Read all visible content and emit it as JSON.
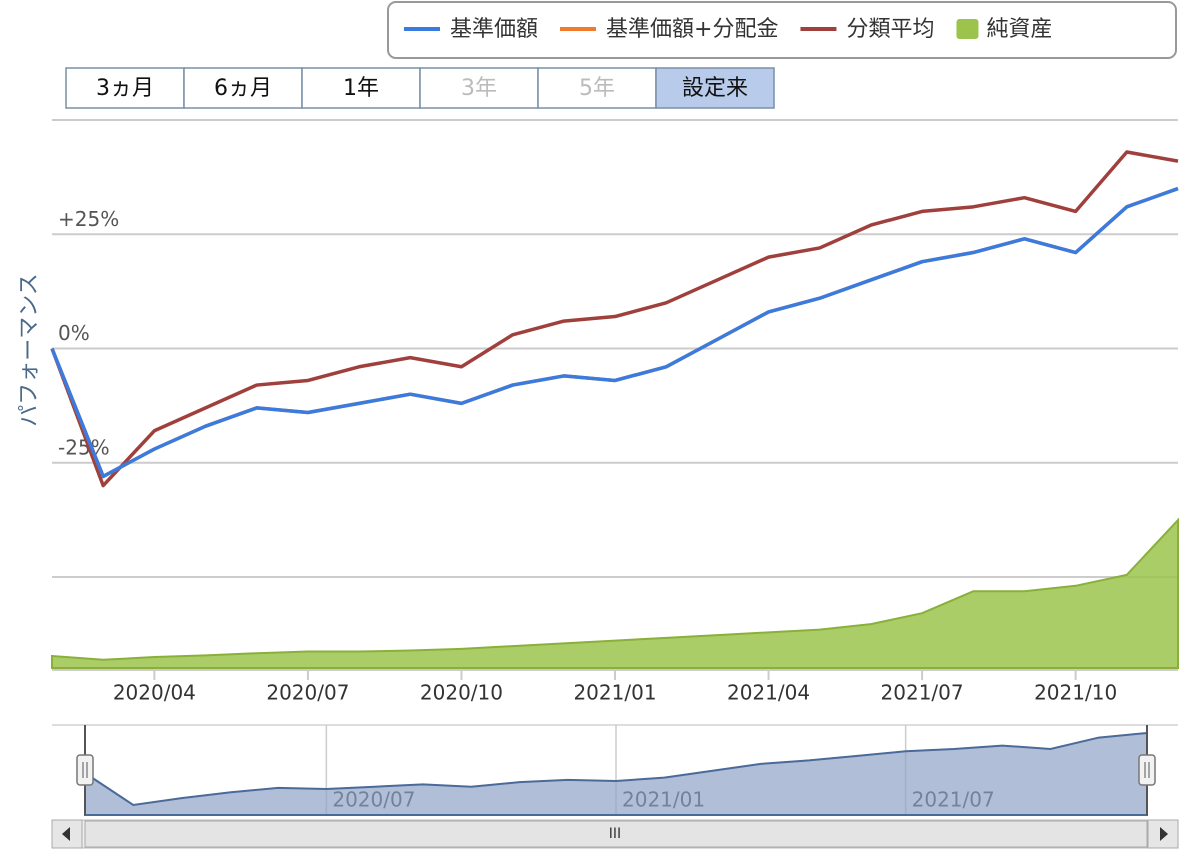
{
  "chart_data": {
    "type": "line",
    "y_axis_label": "パフォーマンス",
    "range_buttons": [
      "3ヵ月",
      "6ヵ月",
      "1年",
      "3年",
      "5年",
      "設定来"
    ],
    "selected_button": 5,
    "disabled_buttons": [
      3,
      4
    ],
    "x": [
      "2020/02",
      "2020/03",
      "2020/04",
      "2020/05",
      "2020/06",
      "2020/07",
      "2020/08",
      "2020/09",
      "2020/10",
      "2020/11",
      "2020/12",
      "2021/01",
      "2021/02",
      "2021/03",
      "2021/04",
      "2021/05",
      "2021/06",
      "2021/07",
      "2021/08",
      "2021/09",
      "2021/10",
      "2021/11",
      "2021/12"
    ],
    "xlim": [
      "2020/02",
      "2021/12"
    ],
    "xticks": [
      "2020/04",
      "2020/07",
      "2020/10",
      "2021/01",
      "2021/04",
      "2021/07",
      "2021/10"
    ],
    "navigator_ticks": [
      "2020/07",
      "2021/01",
      "2021/07"
    ],
    "ylim": [
      -50,
      50
    ],
    "yticks": [
      {
        "value": 25,
        "label": "+25%"
      },
      {
        "value": 0,
        "label": "0%"
      },
      {
        "value": -25,
        "label": "-25%"
      }
    ],
    "y2lim": [
      0,
      100
    ],
    "grid": true,
    "series": [
      {
        "name": "基準価額",
        "color": "#3a7be0",
        "values": [
          0,
          -28,
          -22,
          -17,
          -13,
          -14,
          -12,
          -10,
          -12,
          -8,
          -6,
          -7,
          -4,
          2,
          8,
          11,
          15,
          19,
          21,
          24,
          21,
          31,
          35
        ]
      },
      {
        "name": "基準価額+分配金",
        "color": "#f07b2c",
        "values": [
          0,
          -28,
          -22,
          -17,
          -13,
          -14,
          -12,
          -10,
          -12,
          -8,
          -6,
          -7,
          -4,
          2,
          8,
          11,
          15,
          19,
          21,
          24,
          21,
          31,
          35
        ]
      },
      {
        "name": "分類平均",
        "color": "#a0403c",
        "values": [
          0,
          -30,
          -18,
          -13,
          -8,
          -7,
          -4,
          -2,
          -4,
          3,
          6,
          7,
          10,
          15,
          20,
          22,
          27,
          30,
          31,
          33,
          30,
          43,
          41
        ]
      },
      {
        "name": "純資産",
        "color": "#9cc44c",
        "type": "area",
        "axis": "y2",
        "values": [
          2.2,
          1.5,
          2,
          2.3,
          2.7,
          3,
          3,
          3.2,
          3.5,
          4,
          4.5,
          5,
          5.5,
          6,
          6.5,
          7,
          8,
          10,
          14,
          14,
          15,
          17,
          27
        ]
      }
    ]
  }
}
